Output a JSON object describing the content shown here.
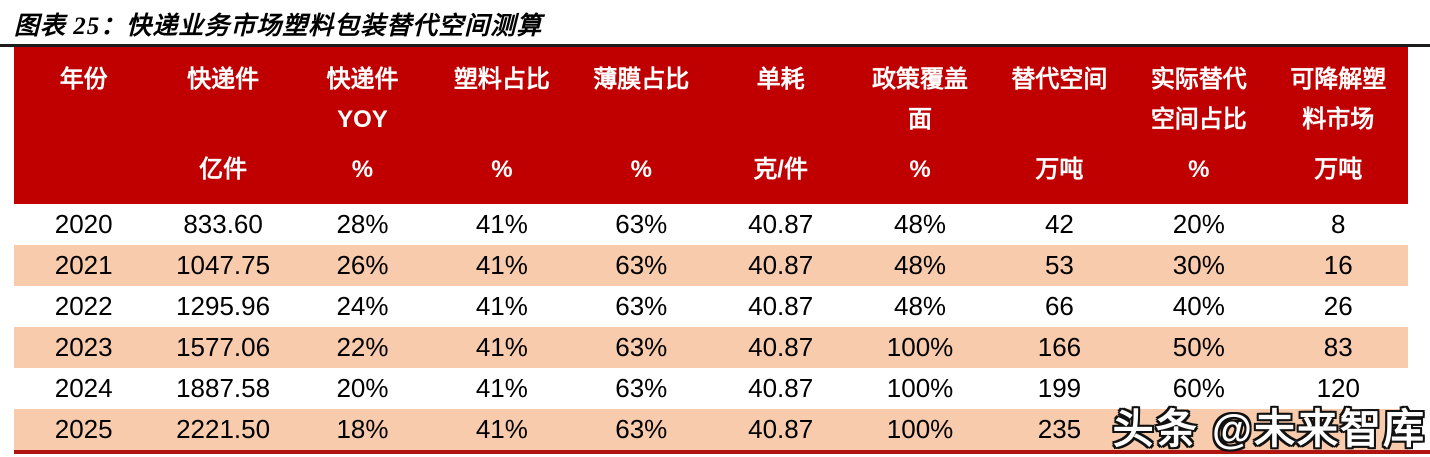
{
  "chart_data": {
    "type": "table",
    "title": "图表 25：快递业务市场塑料包装替代空间测算",
    "columns": [
      {
        "label": "年份",
        "unit": ""
      },
      {
        "label": "快递件",
        "unit": "亿件"
      },
      {
        "label": "快递件\nYOY",
        "unit": "%"
      },
      {
        "label": "塑料占比",
        "unit": "%"
      },
      {
        "label": "薄膜占比",
        "unit": "%"
      },
      {
        "label": "单耗",
        "unit": "克/件"
      },
      {
        "label": "政策覆盖\n面",
        "unit": "%"
      },
      {
        "label": "替代空间",
        "unit": "万吨"
      },
      {
        "label": "实际替代\n空间占比",
        "unit": "%"
      },
      {
        "label": "可降解塑\n料市场",
        "unit": "万吨"
      }
    ],
    "rows": [
      [
        "2020",
        "833.60",
        "28%",
        "41%",
        "63%",
        "40.87",
        "48%",
        "42",
        "20%",
        "8"
      ],
      [
        "2021",
        "1047.75",
        "26%",
        "41%",
        "63%",
        "40.87",
        "48%",
        "53",
        "30%",
        "16"
      ],
      [
        "2022",
        "1295.96",
        "24%",
        "41%",
        "63%",
        "40.87",
        "48%",
        "66",
        "40%",
        "26"
      ],
      [
        "2023",
        "1577.06",
        "22%",
        "41%",
        "63%",
        "40.87",
        "100%",
        "166",
        "50%",
        "83"
      ],
      [
        "2024",
        "1887.58",
        "20%",
        "41%",
        "63%",
        "40.87",
        "100%",
        "199",
        "60%",
        "120"
      ],
      [
        "2025",
        "2221.50",
        "18%",
        "41%",
        "63%",
        "40.87",
        "100%",
        "235",
        "",
        ""
      ]
    ],
    "layout": {
      "banded_rows": true,
      "band_start_row": "2021",
      "hidden_by_watermark": "last two cells of 2025 row"
    }
  },
  "watermark": {
    "text": "头条 @未来智库"
  },
  "colors": {
    "header_bg": "#C00000",
    "band_bg": "#F8CBAD",
    "header_text": "#FFFFFF",
    "bottom_border": "#B01513",
    "top_rule": "#1C1C1C"
  }
}
